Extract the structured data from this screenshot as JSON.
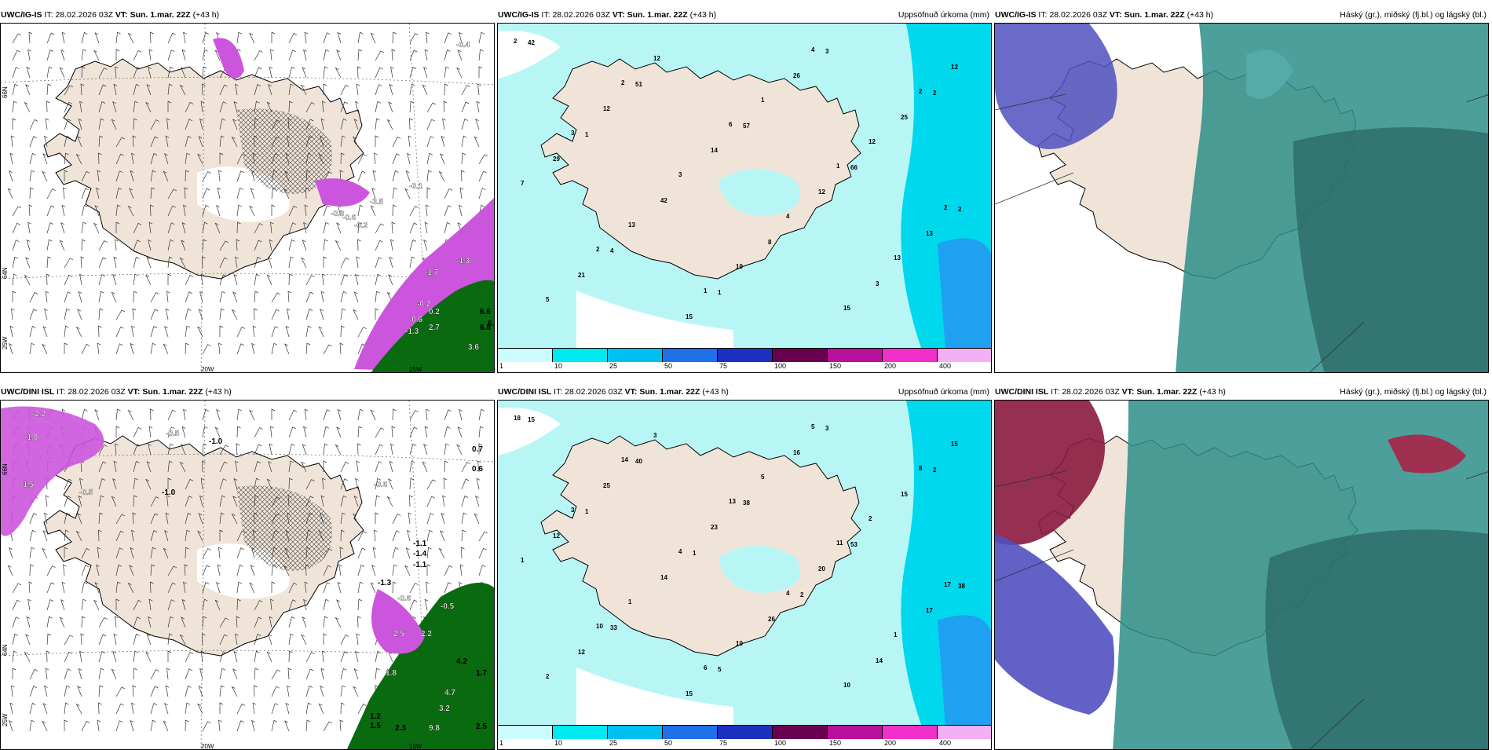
{
  "panels": [
    {
      "model": "UWC/IG-IS",
      "it_label": "IT:",
      "it": "28.02.2026 03Z",
      "vt_label": "VT:",
      "vt": "Sun. 1.mar. 22Z",
      "lead": "(+43 h)",
      "right_title": ""
    },
    {
      "model": "UWC/IG-IS",
      "it_label": "IT:",
      "it": "28.02.2026 03Z",
      "vt_label": "VT:",
      "vt": "Sun. 1.mar. 22Z",
      "lead": "(+43 h)",
      "right_title": "Uppsöfnuð úrkoma (mm)"
    },
    {
      "model": "UWC/IG-IS",
      "it_label": "IT:",
      "it": "28.02.2026 03Z",
      "vt_label": "VT:",
      "vt": "Sun. 1.mar. 22Z",
      "lead": "(+43 h)",
      "right_title": "Háský (gr.), miðský (fj.bl.) og lágský (bl.)"
    },
    {
      "model": "UWC/DINI ISL",
      "it_label": "IT:",
      "it": "28.02.2026 03Z",
      "vt_label": "VT:",
      "vt": "Sun. 1.mar. 22Z",
      "lead": "(+43 h)",
      "right_title": ""
    },
    {
      "model": "UWC/DINI ISL",
      "it_label": "IT:",
      "it": "28.02.2026 03Z",
      "vt_label": "VT:",
      "vt": "Sun. 1.mar. 22Z",
      "lead": "(+43 h)",
      "right_title": "Uppsöfnuð úrkoma (mm)"
    },
    {
      "model": "UWC/DINI ISL",
      "it_label": "IT:",
      "it": "28.02.2026 03Z",
      "vt_label": "VT:",
      "vt": "Sun. 1.mar. 22Z",
      "lead": "(+43 h)",
      "right_title": "Háský (gr.), miðský (fj.bl.) og lágský (bl.)"
    }
  ],
  "grid_labels": {
    "lat_66": "66N",
    "lat_64": "64N",
    "lon_25": "25W",
    "lon_20": "20W",
    "lon_15": "15W"
  },
  "colorbar": {
    "ticks": [
      "1",
      "10",
      "25",
      "50",
      "75",
      "100",
      "150",
      "200",
      "400"
    ],
    "colors": [
      "#ccfcfc",
      "#00e8f0",
      "#00c0f0",
      "#2070e8",
      "#1c30c0",
      "#680050",
      "#b8109c",
      "#f030c8",
      "#f4b0f4"
    ]
  },
  "temp_labels_top": [
    "-0.4",
    "-1.3",
    "0.2",
    "-0.1",
    "-3.5",
    "-0.3",
    "-0.6",
    "-0.2",
    "6.6",
    "6.8",
    "6.9",
    "3.6",
    "2.7",
    "-1.7",
    "-1.3",
    "-0.6",
    "-0.2"
  ],
  "temp_labels_bottom": [
    "-1.0",
    "-2.2",
    "-1.8",
    "-0.5",
    "-1.5",
    "-1.0",
    "-0.5",
    "-0.6",
    "0.7",
    "0.6",
    "-1.1",
    "-1.4",
    "-1.1",
    "-1.3",
    "-0.6",
    "-0.5",
    "2.5",
    "2.2",
    "1.8",
    "4.2",
    "1.7",
    "4.7",
    "3.2",
    "9.8",
    "2.3",
    "2.5",
    "1.2",
    "1.5"
  ],
  "precip_top": [
    "2",
    "2",
    "6",
    "1",
    "2",
    "2",
    "1",
    "4",
    "2",
    "3",
    "3",
    "4",
    "13",
    "5",
    "12",
    "1",
    "12",
    "7",
    "13",
    "10",
    "15",
    "12",
    "12",
    "14",
    "12",
    "13",
    "21",
    "15",
    "26",
    "25",
    "29",
    "42",
    "8",
    "3",
    "42",
    "51",
    "57",
    "66",
    "2",
    "4",
    "1",
    "3",
    "2",
    "1"
  ],
  "precip_bottom": [
    "18",
    "14",
    "13",
    "11",
    "17",
    "10",
    "6",
    "5",
    "8",
    "3",
    "4",
    "4",
    "1",
    "2",
    "3",
    "5",
    "2",
    "1",
    "1",
    "10",
    "10",
    "15",
    "25",
    "23",
    "20",
    "17",
    "12",
    "15",
    "16",
    "15",
    "12",
    "14",
    "26",
    "14",
    "15",
    "40",
    "38",
    "53",
    "38",
    "33",
    "5",
    "3",
    "2",
    "1",
    "1",
    "2"
  ],
  "colors": {
    "land": "#f0e4d8",
    "sea_cyan": "#b8f6f6",
    "sea_mid": "#00d8ee",
    "magenta": "#cc55dd",
    "green": "#0a6a10",
    "cloud_blue": "#5050c0",
    "cloud_teal": "#2e8e8a",
    "cloud_dark": "#2c6a68",
    "cloud_red": "#8a1a40"
  }
}
